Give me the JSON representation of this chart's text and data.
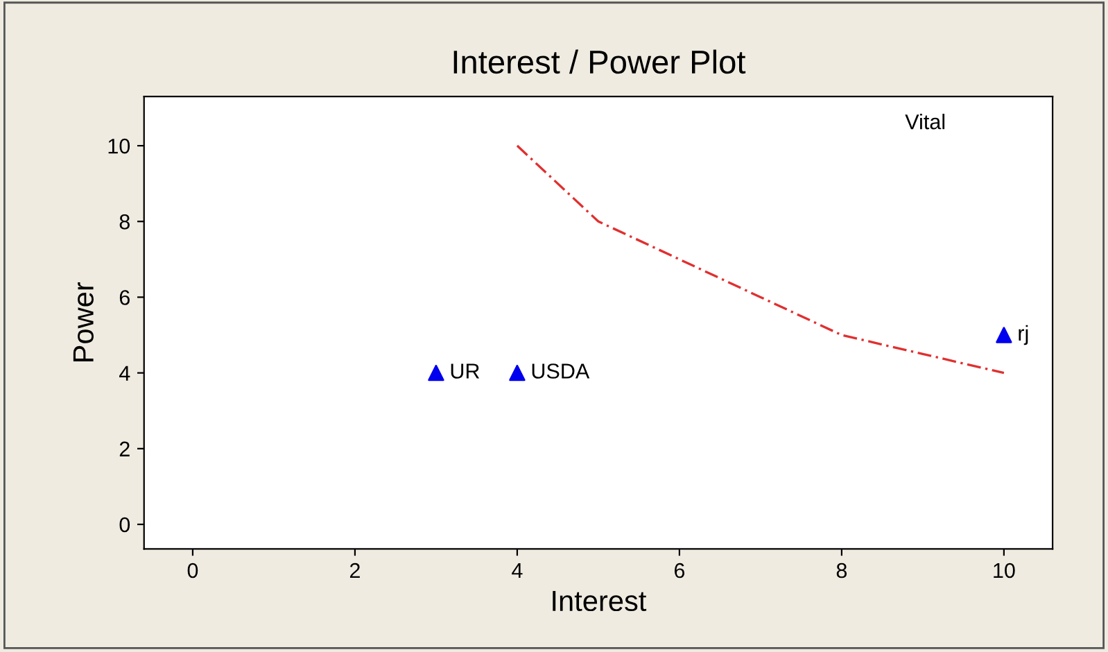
{
  "chart_data": {
    "type": "scatter",
    "title": "Interest / Power Plot",
    "xlabel": "Interest",
    "ylabel": "Power",
    "xlim": [
      -0.6,
      10.6
    ],
    "ylim": [
      -0.65,
      11.3
    ],
    "xticks": [
      0,
      2,
      4,
      6,
      8,
      10
    ],
    "yticks": [
      0,
      2,
      4,
      6,
      8,
      10
    ],
    "grid": false,
    "legend": false,
    "series": [
      {
        "type": "line",
        "color": "#e03030",
        "line_style": "dashed",
        "marker": "none",
        "x": [
          4,
          5,
          6,
          7,
          8,
          9,
          10
        ],
        "values": [
          10,
          8,
          7,
          6,
          5,
          4.5,
          4
        ]
      },
      {
        "color": "#0000ee",
        "marker": "triangle",
        "x": [
          3,
          4,
          10
        ],
        "values": [
          4,
          4,
          5
        ]
      }
    ],
    "annotations": [
      "Vital",
      {
        "text": "UR",
        "x": 3,
        "y": 4
      },
      {
        "text": "USDA",
        "x": 4,
        "y": 4
      },
      {
        "text": "rj",
        "x": 10,
        "y": 5
      }
    ]
  }
}
